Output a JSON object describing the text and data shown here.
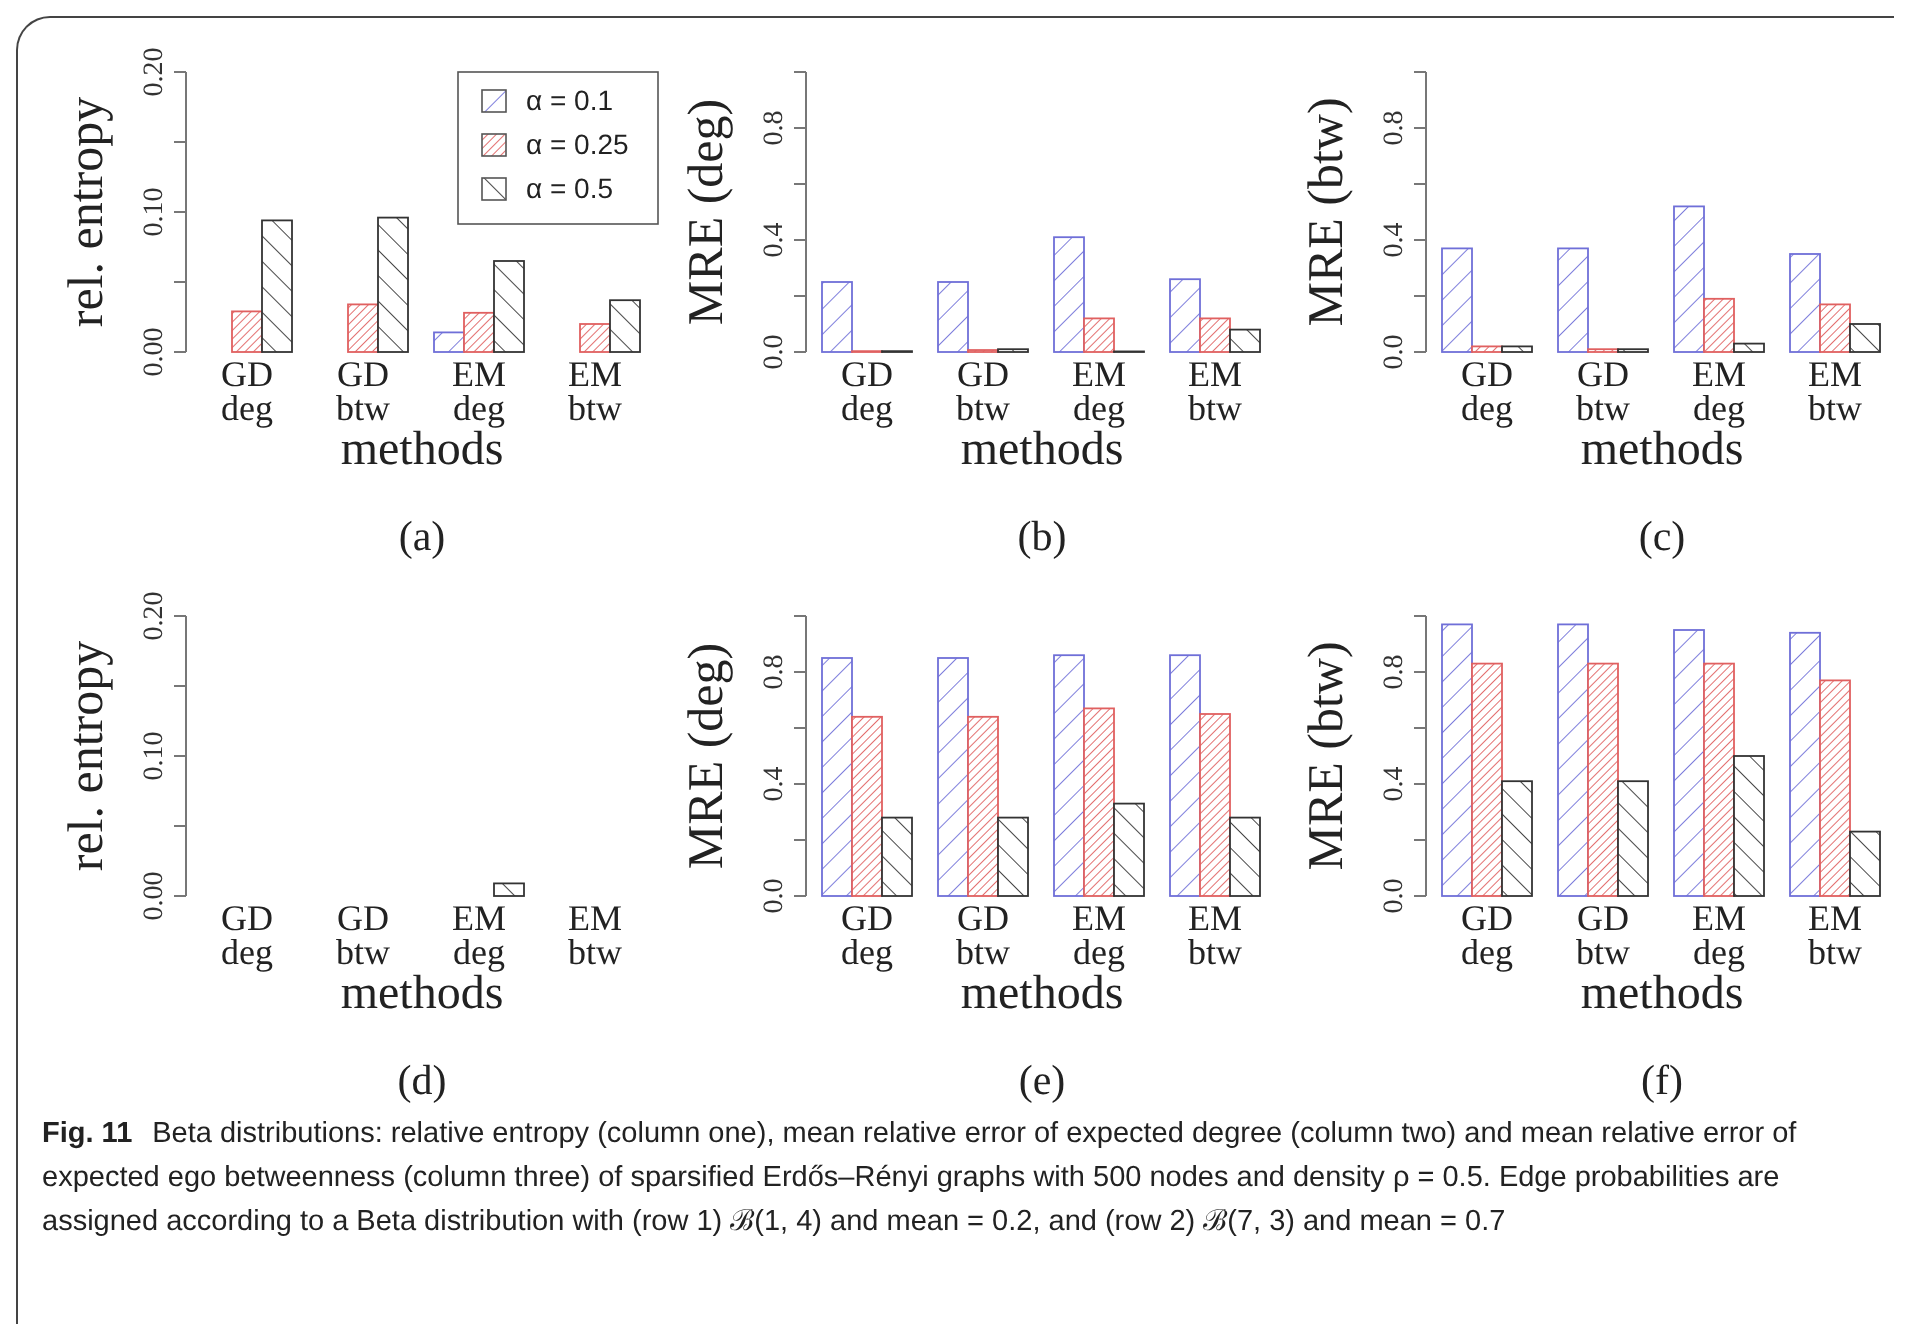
{
  "chart_data": [
    {
      "type": "bar",
      "title": "(a)",
      "xlabel": "methods",
      "ylabel": "rel. entropy",
      "categories": [
        "GD deg",
        "GD btw",
        "EM deg",
        "EM btw"
      ],
      "ylim": [
        0,
        0.2
      ],
      "yticks": [
        {
          "value": 0,
          "label": "0.00"
        },
        {
          "value": 0.05,
          "label": null
        },
        {
          "value": 0.1,
          "label": "0.10"
        },
        {
          "value": 0.15,
          "label": null
        },
        {
          "value": 0.2,
          "label": "0.20"
        }
      ],
      "legend": "top right",
      "series": [
        {
          "name": "α = 0.1",
          "color": "#6f6fd8",
          "values": [
            0,
            0,
            0.014,
            0
          ]
        },
        {
          "name": "α = 0.25",
          "color": "#e06060",
          "values": [
            0.029,
            0.034,
            0.028,
            0.02
          ]
        },
        {
          "name": "α = 0.5",
          "color": "#333333",
          "values": [
            0.094,
            0.096,
            0.065,
            0.037
          ]
        }
      ]
    },
    {
      "type": "bar",
      "title": "(b)",
      "xlabel": "methods",
      "ylabel": "MRE (deg)",
      "categories": [
        "GD deg",
        "GD btw",
        "EM deg",
        "EM btw"
      ],
      "ylim": [
        0,
        1
      ],
      "yticks": [
        {
          "value": 0,
          "label": "0.0"
        },
        {
          "value": 0.2,
          "label": null
        },
        {
          "value": 0.4,
          "label": "0.4"
        },
        {
          "value": 0.6,
          "label": null
        },
        {
          "value": 0.8,
          "label": "0.8"
        },
        {
          "value": 1,
          "label": null
        }
      ],
      "series": [
        {
          "color": "#6f6fd8",
          "values": [
            0.25,
            0.25,
            0.41,
            0.26
          ]
        },
        {
          "color": "#e06060",
          "values": [
            0.003,
            0.007,
            0.12,
            0.12
          ]
        },
        {
          "color": "#333333",
          "values": [
            0.003,
            0.01,
            0.002,
            0.08
          ]
        }
      ]
    },
    {
      "type": "bar",
      "title": "(c)",
      "xlabel": "methods",
      "ylabel": "MRE (btw)",
      "categories": [
        "GD deg",
        "GD btw",
        "EM deg",
        "EM btw"
      ],
      "ylim": [
        0,
        1
      ],
      "yticks": [
        {
          "value": 0,
          "label": "0.0"
        },
        {
          "value": 0.2,
          "label": null
        },
        {
          "value": 0.4,
          "label": "0.4"
        },
        {
          "value": 0.6,
          "label": null
        },
        {
          "value": 0.8,
          "label": "0.8"
        },
        {
          "value": 1,
          "label": null
        }
      ],
      "series": [
        {
          "color": "#6f6fd8",
          "values": [
            0.37,
            0.37,
            0.52,
            0.35
          ]
        },
        {
          "color": "#e06060",
          "values": [
            0.02,
            0.01,
            0.19,
            0.17
          ]
        },
        {
          "color": "#333333",
          "values": [
            0.02,
            0.01,
            0.03,
            0.1
          ]
        }
      ]
    },
    {
      "type": "bar",
      "title": "(d)",
      "xlabel": "methods",
      "ylabel": "rel. entropy",
      "categories": [
        "GD deg",
        "GD btw",
        "EM deg",
        "EM btw"
      ],
      "ylim": [
        0,
        0.2
      ],
      "yticks": [
        {
          "value": 0,
          "label": "0.00"
        },
        {
          "value": 0.05,
          "label": null
        },
        {
          "value": 0.1,
          "label": "0.10"
        },
        {
          "value": 0.15,
          "label": null
        },
        {
          "value": 0.2,
          "label": "0.20"
        }
      ],
      "series": [
        {
          "color": "#6f6fd8",
          "values": [
            0,
            0,
            0,
            0
          ]
        },
        {
          "color": "#e06060",
          "values": [
            0,
            0,
            0,
            0
          ]
        },
        {
          "color": "#333333",
          "values": [
            0,
            0,
            0.009,
            0
          ]
        }
      ]
    },
    {
      "type": "bar",
      "title": "(e)",
      "xlabel": "methods",
      "ylabel": "MRE (deg)",
      "categories": [
        "GD deg",
        "GD btw",
        "EM deg",
        "EM btw"
      ],
      "ylim": [
        0,
        1
      ],
      "yticks": [
        {
          "value": 0,
          "label": "0.0"
        },
        {
          "value": 0.2,
          "label": null
        },
        {
          "value": 0.4,
          "label": "0.4"
        },
        {
          "value": 0.6,
          "label": null
        },
        {
          "value": 0.8,
          "label": "0.8"
        },
        {
          "value": 1,
          "label": null
        }
      ],
      "series": [
        {
          "color": "#6f6fd8",
          "values": [
            0.85,
            0.85,
            0.86,
            0.86
          ]
        },
        {
          "color": "#e06060",
          "values": [
            0.64,
            0.64,
            0.67,
            0.65
          ]
        },
        {
          "color": "#333333",
          "values": [
            0.28,
            0.28,
            0.33,
            0.28
          ]
        }
      ]
    },
    {
      "type": "bar",
      "title": "(f)",
      "xlabel": "methods",
      "ylabel": "MRE (btw)",
      "categories": [
        "GD deg",
        "GD btw",
        "EM deg",
        "EM btw"
      ],
      "ylim": [
        0,
        1
      ],
      "yticks": [
        {
          "value": 0,
          "label": "0.0"
        },
        {
          "value": 0.2,
          "label": null
        },
        {
          "value": 0.4,
          "label": "0.4"
        },
        {
          "value": 0.6,
          "label": null
        },
        {
          "value": 0.8,
          "label": "0.8"
        },
        {
          "value": 1,
          "label": null
        }
      ],
      "series": [
        {
          "color": "#6f6fd8",
          "values": [
            0.97,
            0.97,
            0.95,
            0.94
          ]
        },
        {
          "color": "#e06060",
          "values": [
            0.83,
            0.83,
            0.83,
            0.77
          ]
        },
        {
          "color": "#333333",
          "values": [
            0.41,
            0.41,
            0.5,
            0.23
          ]
        }
      ]
    },
    {
      "type": "other",
      "title": "Fig. 11",
      "annotations": [
        "Beta distributions: relative entropy (column one), mean relative error of expected degree (column two) and mean relative error of expected ego betweenness (column three) of sparsified Erdős–Rényi graphs with 500 nodes and density ρ = 0.5. Edge probabilities are assigned according to a Beta distribution with (row 1) ℬ(1, 4) and mean = 0.2, and (row 2) ℬ(7, 3) and mean = 0.7"
      ]
    }
  ]
}
